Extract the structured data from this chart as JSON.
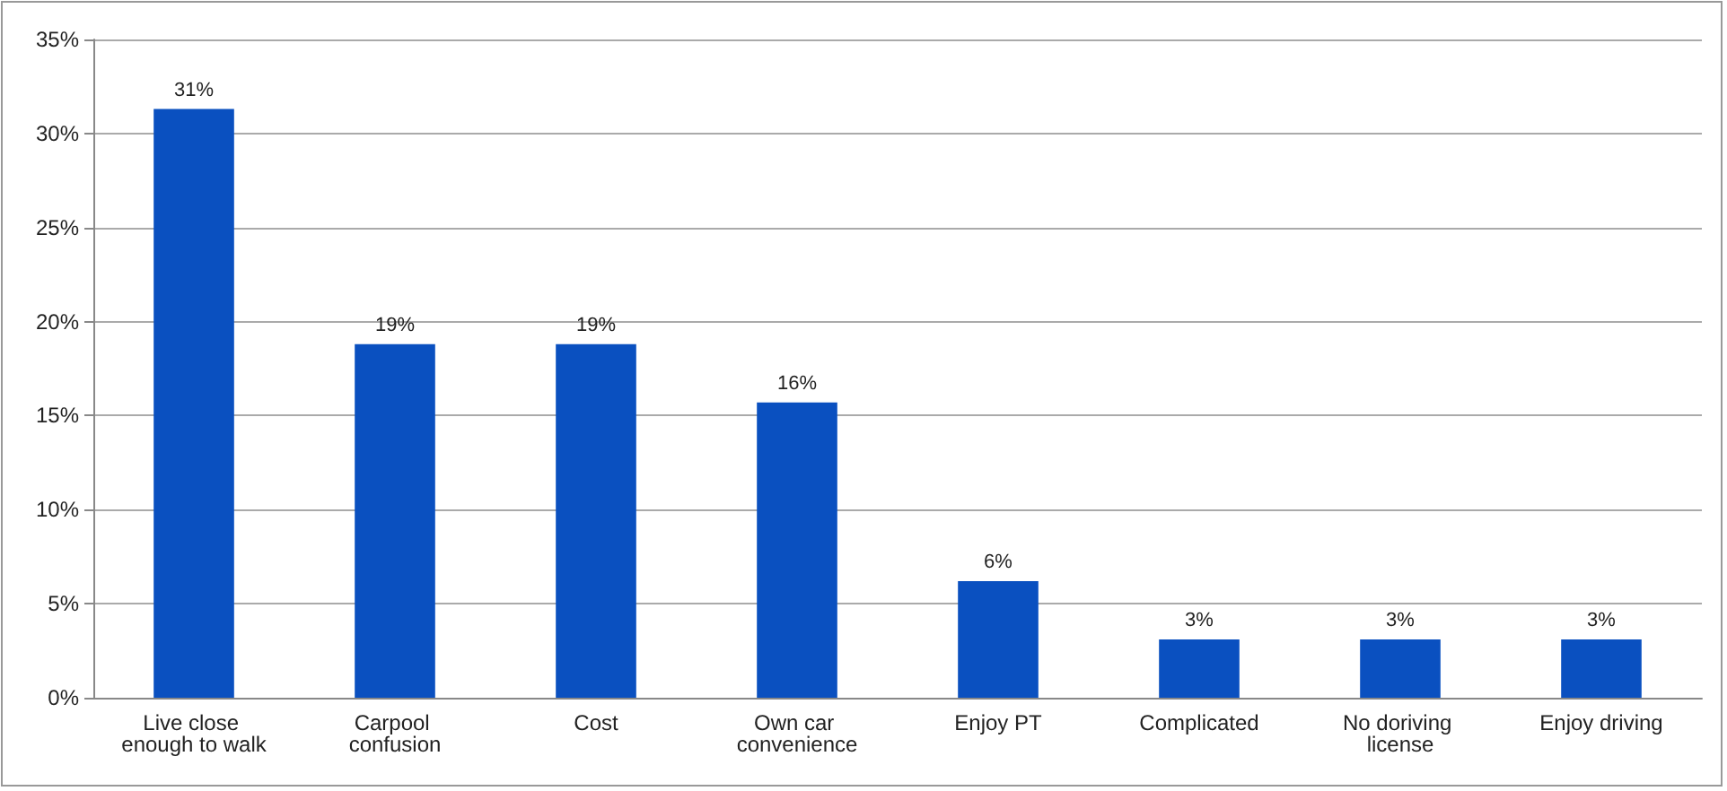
{
  "chart_data": {
    "type": "bar",
    "categories": [
      "Live close enough to walk",
      "Carpool confusion",
      "Cost",
      "Own car convenience",
      "Enjoy PT",
      "Complicated",
      "No doriving license",
      "Enjoy driving"
    ],
    "values": [
      31.3,
      18.8,
      18.8,
      15.7,
      6.2,
      3.1,
      3.1,
      3.1
    ],
    "value_labels": [
      "31%",
      "19%",
      "19%",
      "16%",
      "6%",
      "3%",
      "3%",
      "3%"
    ],
    "color": "#0a50c0",
    "ylim": [
      0,
      35
    ],
    "yticks": [
      {
        "value": 0,
        "label": "0%"
      },
      {
        "value": 5,
        "label": "5%"
      },
      {
        "value": 10,
        "label": "10%"
      },
      {
        "value": 15,
        "label": "15%"
      },
      {
        "value": 20,
        "label": "20%"
      },
      {
        "value": 25,
        "label": "25%"
      },
      {
        "value": 30,
        "label": "30%"
      },
      {
        "value": 35,
        "label": "35%"
      }
    ],
    "grid": "y"
  }
}
